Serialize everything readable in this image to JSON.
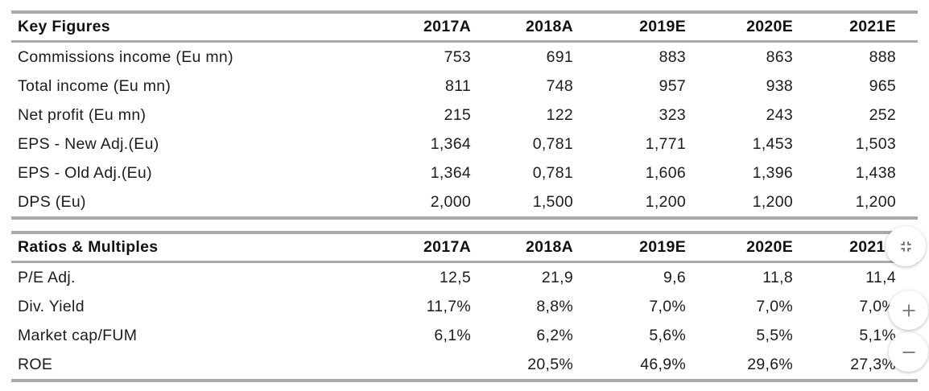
{
  "tables": [
    {
      "title": "Key Figures",
      "columns": [
        "2017A",
        "2018A",
        "2019E",
        "2020E",
        "2021E"
      ],
      "rows": [
        {
          "label": "Commissions income (Eu mn)",
          "values": [
            "753",
            "691",
            "883",
            "863",
            "888"
          ]
        },
        {
          "label": "Total income (Eu mn)",
          "values": [
            "811",
            "748",
            "957",
            "938",
            "965"
          ]
        },
        {
          "label": "Net profit (Eu mn)",
          "values": [
            "215",
            "122",
            "323",
            "243",
            "252"
          ]
        },
        {
          "label": "EPS - New Adj.(Eu)",
          "values": [
            "1,364",
            "0,781",
            "1,771",
            "1,453",
            "1,503"
          ]
        },
        {
          "label": "EPS - Old Adj.(Eu)",
          "values": [
            "1,364",
            "0,781",
            "1,606",
            "1,396",
            "1,438"
          ]
        },
        {
          "label": "DPS (Eu)",
          "values": [
            "2,000",
            "1,500",
            "1,200",
            "1,200",
            "1,200"
          ]
        }
      ]
    },
    {
      "title": "Ratios & Multiples",
      "columns": [
        "2017A",
        "2018A",
        "2019E",
        "2020E",
        "2021E"
      ],
      "rows": [
        {
          "label": "P/E Adj.",
          "values": [
            "12,5",
            "21,9",
            "9,6",
            "11,8",
            "11,4"
          ]
        },
        {
          "label": "Div. Yield",
          "values": [
            "11,7%",
            "8,8%",
            "7,0%",
            "7,0%",
            "7,0%"
          ]
        },
        {
          "label": "Market cap/FUM",
          "values": [
            "6,1%",
            "6,2%",
            "5,6%",
            "5,5%",
            "5,1%"
          ]
        },
        {
          "label": "ROE",
          "values": [
            "",
            "20,5%",
            "46,9%",
            "29,6%",
            "27,3%"
          ]
        }
      ]
    }
  ],
  "viewer_controls": {
    "fit_button": {
      "icon": "fit-to-page-icon",
      "glyph": ""
    },
    "zoom_in_button": {
      "icon": "plus-icon",
      "glyph": "+"
    },
    "zoom_out_button": {
      "icon": "minus-icon",
      "glyph": "−"
    }
  },
  "colors": {
    "rule_gray": "#a9a9a9",
    "text": "#1c1c1c",
    "icon_gray": "#757575",
    "button_bg": "#ffffff"
  }
}
